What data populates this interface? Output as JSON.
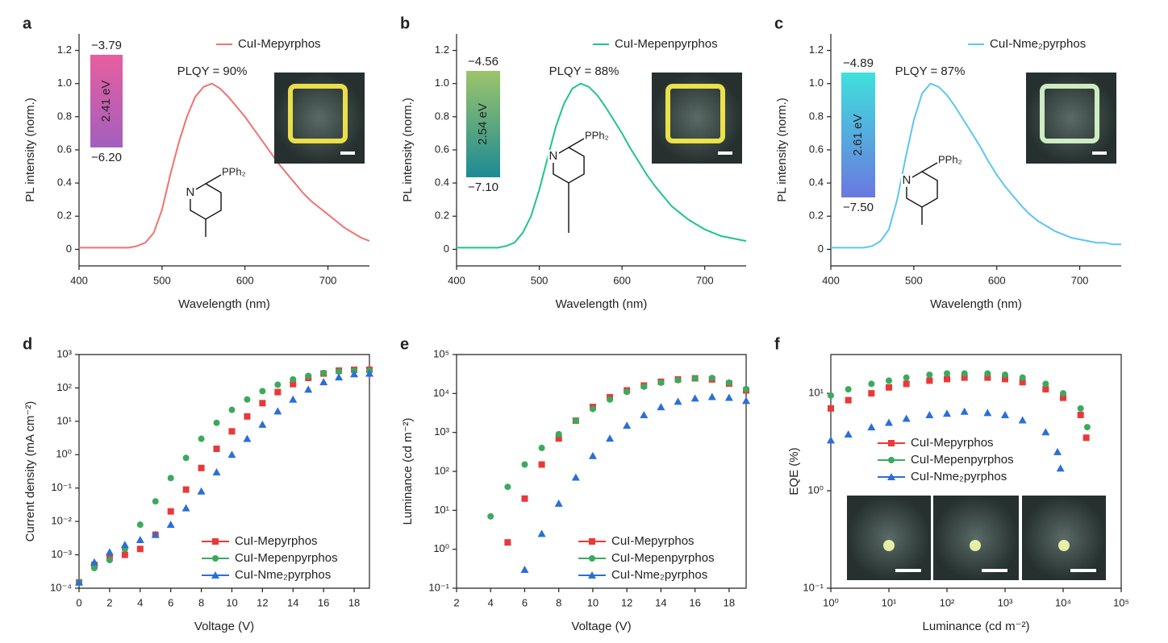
{
  "chart_data": [
    {
      "type": "line",
      "panel_label": "a",
      "xlabel": "Wavelength (nm)",
      "ylabel": "PL intensity (norm.)",
      "xlim": [
        400,
        750
      ],
      "ylim": [
        -0.1,
        1.3
      ],
      "xticks": [
        400,
        500,
        600,
        700
      ],
      "yticks": [
        0,
        0.2,
        0.4,
        0.6,
        0.8,
        {
          "value": 1,
          "label": "1.0"
        },
        1.2
      ],
      "legend": "upper right",
      "x": [
        400,
        410,
        420,
        430,
        440,
        450,
        460,
        470,
        480,
        490,
        500,
        510,
        520,
        530,
        540,
        550,
        560,
        570,
        580,
        590,
        600,
        610,
        620,
        630,
        640,
        650,
        660,
        670,
        680,
        690,
        700,
        710,
        720,
        730,
        740,
        750
      ],
      "series": [
        {
          "name": "CuI-Mepyrphos",
          "color": "#f07272",
          "values": [
            0.01,
            0.01,
            0.01,
            0.01,
            0.01,
            0.01,
            0.01,
            0.02,
            0.04,
            0.1,
            0.24,
            0.45,
            0.64,
            0.8,
            0.92,
            0.98,
            1.0,
            0.97,
            0.92,
            0.86,
            0.8,
            0.73,
            0.66,
            0.59,
            0.52,
            0.46,
            0.4,
            0.34,
            0.29,
            0.25,
            0.21,
            0.17,
            0.13,
            0.1,
            0.07,
            0.05
          ]
        }
      ],
      "plqy": "PLQY = 90%",
      "energy_levels": [
        "−3.79",
        "−6.20"
      ],
      "gap": "2.41 eV",
      "structure_labels": [
        "N",
        "PPh₂"
      ]
    },
    {
      "type": "line",
      "panel_label": "b",
      "xlabel": "Wavelength (nm)",
      "ylabel": "PL intensity (norm.)",
      "xlim": [
        400,
        750
      ],
      "ylim": [
        -0.1,
        1.3
      ],
      "xticks": [
        400,
        500,
        600,
        700
      ],
      "yticks": [
        0,
        0.2,
        0.4,
        0.6,
        0.8,
        {
          "value": 1,
          "label": "1.0"
        },
        1.2
      ],
      "legend": "upper right",
      "x": [
        400,
        410,
        420,
        430,
        440,
        450,
        460,
        470,
        480,
        490,
        500,
        510,
        520,
        530,
        540,
        550,
        560,
        570,
        580,
        590,
        600,
        610,
        620,
        630,
        640,
        650,
        660,
        670,
        680,
        690,
        700,
        710,
        720,
        730,
        740,
        750
      ],
      "series": [
        {
          "name": "CuI-Mepenpyrphos",
          "color": "#1fc48c",
          "values": [
            0.01,
            0.01,
            0.01,
            0.01,
            0.01,
            0.01,
            0.02,
            0.04,
            0.1,
            0.2,
            0.36,
            0.55,
            0.74,
            0.88,
            0.97,
            1.0,
            0.98,
            0.93,
            0.86,
            0.78,
            0.7,
            0.61,
            0.53,
            0.45,
            0.38,
            0.32,
            0.26,
            0.22,
            0.18,
            0.15,
            0.12,
            0.1,
            0.08,
            0.07,
            0.06,
            0.05
          ]
        }
      ],
      "plqy": "PLQY = 88%",
      "energy_levels": [
        "−4.56",
        "−7.10"
      ],
      "gap": "2.54 eV",
      "structure_labels": [
        "N",
        "PPh₂"
      ]
    },
    {
      "type": "line",
      "panel_label": "c",
      "xlabel": "Wavelength (nm)",
      "ylabel": "PL intensity (norm.)",
      "xlim": [
        400,
        750
      ],
      "ylim": [
        -0.1,
        1.3
      ],
      "xticks": [
        400,
        500,
        600,
        700
      ],
      "yticks": [
        0,
        0.2,
        0.4,
        0.6,
        0.8,
        {
          "value": 1,
          "label": "1.0"
        },
        1.2
      ],
      "legend": "upper right",
      "x": [
        400,
        410,
        420,
        430,
        440,
        450,
        460,
        470,
        480,
        490,
        500,
        510,
        520,
        530,
        540,
        550,
        560,
        570,
        580,
        590,
        600,
        610,
        620,
        630,
        640,
        650,
        660,
        670,
        680,
        690,
        700,
        710,
        720,
        730,
        740,
        750
      ],
      "series": [
        {
          "name": "CuI-Nme₂pyrphos",
          "color": "#5cc6f0",
          "values": [
            0.01,
            0.01,
            0.01,
            0.01,
            0.01,
            0.02,
            0.05,
            0.12,
            0.3,
            0.55,
            0.78,
            0.94,
            1.0,
            0.98,
            0.93,
            0.86,
            0.78,
            0.7,
            0.62,
            0.53,
            0.45,
            0.38,
            0.32,
            0.26,
            0.21,
            0.17,
            0.14,
            0.11,
            0.09,
            0.07,
            0.06,
            0.05,
            0.04,
            0.04,
            0.03,
            0.03
          ]
        }
      ],
      "plqy": "PLQY = 87%",
      "energy_levels": [
        "−4.89",
        "−7.50"
      ],
      "gap": "2.61 eV",
      "structure_labels": [
        "N",
        "PPh₂"
      ]
    },
    {
      "type": "scatter",
      "panel_label": "d",
      "xlabel": "Voltage (V)",
      "ylabel": "Current density (mA cm⁻²)",
      "xlim": [
        0,
        19
      ],
      "ylim": [
        0.0001,
        1000
      ],
      "ylog": true,
      "frame": true,
      "legend": "lower right",
      "xticks": [
        0,
        2,
        4,
        6,
        8,
        10,
        12,
        14,
        16,
        18
      ],
      "yticks": [
        {
          "value": 0.0001,
          "label": "10⁻⁴"
        },
        {
          "value": 0.001,
          "label": "10⁻³"
        },
        {
          "value": 0.01,
          "label": "10⁻²"
        },
        {
          "value": 0.1,
          "label": "10⁻¹"
        },
        {
          "value": 1,
          "label": "10⁰"
        },
        {
          "value": 10,
          "label": "10¹"
        },
        {
          "value": 100,
          "label": "10²"
        },
        {
          "value": 1000,
          "label": "10³"
        }
      ],
      "x": [
        0,
        1,
        2,
        3,
        4,
        5,
        6,
        7,
        8,
        9,
        10,
        11,
        12,
        13,
        14,
        15,
        16,
        17,
        18,
        19
      ],
      "series": [
        {
          "name": "CuI-Mepyrphos",
          "color": "#e8393a",
          "marker": "square",
          "values": [
            0.00015,
            0.0005,
            0.0008,
            0.001,
            0.0015,
            0.004,
            0.02,
            0.09,
            0.4,
            1.5,
            5,
            14,
            35,
            75,
            130,
            200,
            270,
            330,
            350,
            350
          ]
        },
        {
          "name": "CuI-Mepenpyrphos",
          "color": "#3aaa5e",
          "marker": "circle",
          "values": [
            0.00015,
            0.0004,
            0.0007,
            0.0015,
            0.008,
            0.04,
            0.2,
            0.8,
            3,
            9,
            22,
            45,
            80,
            125,
            180,
            230,
            280,
            310,
            330,
            330
          ]
        },
        {
          "name": "CuI-Nme₂pyrphos",
          "color": "#2a6fd6",
          "marker": "triangle",
          "values": [
            0.00015,
            0.0006,
            0.0012,
            0.002,
            0.0028,
            0.004,
            0.008,
            0.025,
            0.08,
            0.3,
            1,
            3,
            8,
            20,
            45,
            90,
            150,
            210,
            260,
            270
          ]
        }
      ]
    },
    {
      "type": "scatter",
      "panel_label": "e",
      "xlabel": "Voltage (V)",
      "ylabel": "Luminance (cd m⁻²)",
      "xlim": [
        2,
        19
      ],
      "ylim": [
        0.1,
        100000
      ],
      "ylog": true,
      "frame": true,
      "legend": "lower right",
      "xticks": [
        2,
        4,
        6,
        8,
        10,
        12,
        14,
        16,
        18
      ],
      "yticks": [
        {
          "value": 0.1,
          "label": "10⁻¹"
        },
        {
          "value": 1,
          "label": "10⁰"
        },
        {
          "value": 10,
          "label": "10¹"
        },
        {
          "value": 100,
          "label": "10²"
        },
        {
          "value": 1000,
          "label": "10³"
        },
        {
          "value": 10000,
          "label": "10⁴"
        },
        {
          "value": 100000,
          "label": "10⁵"
        }
      ],
      "x": [
        4,
        5,
        6,
        7,
        8,
        9,
        10,
        11,
        12,
        13,
        14,
        15,
        16,
        17,
        18,
        19
      ],
      "series": [
        {
          "name": "CuI-Mepyrphos",
          "color": "#e8393a",
          "marker": "square",
          "values": [
            null,
            1.5,
            20,
            150,
            700,
            2000,
            4500,
            8000,
            12000,
            16000,
            20000,
            23000,
            24500,
            23000,
            18000,
            12000
          ]
        },
        {
          "name": "CuI-Mepenpyrphos",
          "color": "#3aaa5e",
          "marker": "circle",
          "values": [
            7,
            40,
            150,
            400,
            900,
            2000,
            4000,
            7000,
            11000,
            15000,
            19000,
            22000,
            24500,
            25000,
            19000,
            13000
          ]
        },
        {
          "name": "CuI-Nme₂pyrphos",
          "color": "#2a6fd6",
          "marker": "triangle",
          "values": [
            null,
            null,
            0.3,
            2.5,
            15,
            70,
            250,
            700,
            1500,
            2800,
            4500,
            6200,
            7500,
            8200,
            7800,
            6500
          ]
        }
      ]
    },
    {
      "type": "scatter",
      "panel_label": "f",
      "xlabel": "Luminance (cd m⁻²)",
      "ylabel": "EQE (%)",
      "xlim": [
        1,
        100000
      ],
      "xlog": true,
      "ylim": [
        0.1,
        25
      ],
      "ylog": true,
      "frame": true,
      "legend": "center left",
      "xticks": [
        {
          "value": 1,
          "label": "10⁰"
        },
        {
          "value": 10,
          "label": "10¹"
        },
        {
          "value": 100,
          "label": "10²"
        },
        {
          "value": 1000,
          "label": "10³"
        },
        {
          "value": 10000,
          "label": "10⁴"
        },
        {
          "value": 100000,
          "label": "10⁵"
        }
      ],
      "yticks": [
        {
          "value": 0.1,
          "label": "10⁻¹"
        },
        {
          "value": 1,
          "label": "10⁰"
        },
        {
          "value": 10,
          "label": "10¹"
        }
      ],
      "series": [
        {
          "name": "CuI-Mepyrphos",
          "color": "#e8393a",
          "marker": "square",
          "x": [
            1,
            2,
            5,
            10,
            20,
            50,
            100,
            200,
            500,
            1000,
            2000,
            5000,
            10000,
            20000,
            25000
          ],
          "values": [
            7,
            8.5,
            10,
            11.5,
            12.5,
            13.5,
            14,
            14.5,
            14.5,
            14,
            13,
            11,
            9,
            6,
            3.5
          ]
        },
        {
          "name": "CuI-Mepenpyrphos",
          "color": "#3aaa5e",
          "marker": "circle",
          "x": [
            1,
            2,
            5,
            10,
            20,
            50,
            100,
            200,
            500,
            1000,
            2000,
            5000,
            10000,
            20000,
            26000
          ],
          "values": [
            9.5,
            11,
            12.5,
            13.5,
            14.5,
            15.5,
            16,
            16,
            16,
            15.5,
            14.5,
            12.5,
            10,
            7,
            4.5
          ]
        },
        {
          "name": "CuI-Nme₂pyrphos",
          "color": "#2a6fd6",
          "marker": "triangle",
          "x": [
            1,
            2,
            5,
            10,
            20,
            50,
            100,
            200,
            500,
            1000,
            2000,
            5000,
            8000,
            9000
          ],
          "values": [
            3.3,
            3.8,
            4.5,
            5,
            5.5,
            6,
            6.2,
            6.5,
            6.3,
            6,
            5.3,
            4,
            2.5,
            1.7
          ]
        }
      ]
    }
  ]
}
